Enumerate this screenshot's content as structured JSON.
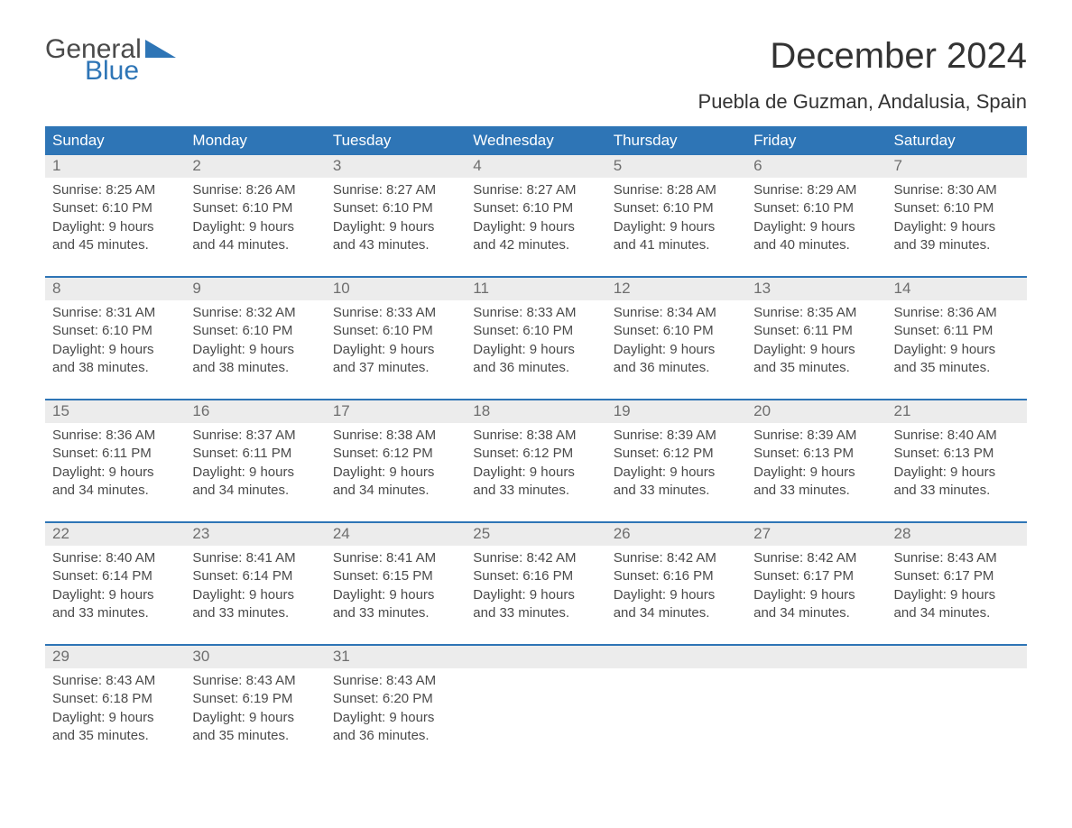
{
  "logo": {
    "word1": "General",
    "word2": "Blue",
    "color_word1": "#4a4a4a",
    "color_word2": "#2e75b6"
  },
  "title": "December 2024",
  "location": "Puebla de Guzman, Andalusia, Spain",
  "colors": {
    "header_bg": "#2e75b6",
    "header_text": "#ffffff",
    "daynum_bg": "#ececec",
    "daynum_text": "#6e6e6e",
    "body_text": "#4a4a4a",
    "week_divider": "#2e75b6",
    "page_bg": "#ffffff"
  },
  "typography": {
    "title_fontsize": 40,
    "location_fontsize": 22,
    "dayheader_fontsize": 17,
    "daynum_fontsize": 17,
    "cell_fontsize": 15
  },
  "day_headers": [
    "Sunday",
    "Monday",
    "Tuesday",
    "Wednesday",
    "Thursday",
    "Friday",
    "Saturday"
  ],
  "weeks": [
    {
      "nums": [
        "1",
        "2",
        "3",
        "4",
        "5",
        "6",
        "7"
      ],
      "cells": [
        {
          "sunrise": "Sunrise: 8:25 AM",
          "sunset": "Sunset: 6:10 PM",
          "dl1": "Daylight: 9 hours",
          "dl2": "and 45 minutes."
        },
        {
          "sunrise": "Sunrise: 8:26 AM",
          "sunset": "Sunset: 6:10 PM",
          "dl1": "Daylight: 9 hours",
          "dl2": "and 44 minutes."
        },
        {
          "sunrise": "Sunrise: 8:27 AM",
          "sunset": "Sunset: 6:10 PM",
          "dl1": "Daylight: 9 hours",
          "dl2": "and 43 minutes."
        },
        {
          "sunrise": "Sunrise: 8:27 AM",
          "sunset": "Sunset: 6:10 PM",
          "dl1": "Daylight: 9 hours",
          "dl2": "and 42 minutes."
        },
        {
          "sunrise": "Sunrise: 8:28 AM",
          "sunset": "Sunset: 6:10 PM",
          "dl1": "Daylight: 9 hours",
          "dl2": "and 41 minutes."
        },
        {
          "sunrise": "Sunrise: 8:29 AM",
          "sunset": "Sunset: 6:10 PM",
          "dl1": "Daylight: 9 hours",
          "dl2": "and 40 minutes."
        },
        {
          "sunrise": "Sunrise: 8:30 AM",
          "sunset": "Sunset: 6:10 PM",
          "dl1": "Daylight: 9 hours",
          "dl2": "and 39 minutes."
        }
      ]
    },
    {
      "nums": [
        "8",
        "9",
        "10",
        "11",
        "12",
        "13",
        "14"
      ],
      "cells": [
        {
          "sunrise": "Sunrise: 8:31 AM",
          "sunset": "Sunset: 6:10 PM",
          "dl1": "Daylight: 9 hours",
          "dl2": "and 38 minutes."
        },
        {
          "sunrise": "Sunrise: 8:32 AM",
          "sunset": "Sunset: 6:10 PM",
          "dl1": "Daylight: 9 hours",
          "dl2": "and 38 minutes."
        },
        {
          "sunrise": "Sunrise: 8:33 AM",
          "sunset": "Sunset: 6:10 PM",
          "dl1": "Daylight: 9 hours",
          "dl2": "and 37 minutes."
        },
        {
          "sunrise": "Sunrise: 8:33 AM",
          "sunset": "Sunset: 6:10 PM",
          "dl1": "Daylight: 9 hours",
          "dl2": "and 36 minutes."
        },
        {
          "sunrise": "Sunrise: 8:34 AM",
          "sunset": "Sunset: 6:10 PM",
          "dl1": "Daylight: 9 hours",
          "dl2": "and 36 minutes."
        },
        {
          "sunrise": "Sunrise: 8:35 AM",
          "sunset": "Sunset: 6:11 PM",
          "dl1": "Daylight: 9 hours",
          "dl2": "and 35 minutes."
        },
        {
          "sunrise": "Sunrise: 8:36 AM",
          "sunset": "Sunset: 6:11 PM",
          "dl1": "Daylight: 9 hours",
          "dl2": "and 35 minutes."
        }
      ]
    },
    {
      "nums": [
        "15",
        "16",
        "17",
        "18",
        "19",
        "20",
        "21"
      ],
      "cells": [
        {
          "sunrise": "Sunrise: 8:36 AM",
          "sunset": "Sunset: 6:11 PM",
          "dl1": "Daylight: 9 hours",
          "dl2": "and 34 minutes."
        },
        {
          "sunrise": "Sunrise: 8:37 AM",
          "sunset": "Sunset: 6:11 PM",
          "dl1": "Daylight: 9 hours",
          "dl2": "and 34 minutes."
        },
        {
          "sunrise": "Sunrise: 8:38 AM",
          "sunset": "Sunset: 6:12 PM",
          "dl1": "Daylight: 9 hours",
          "dl2": "and 34 minutes."
        },
        {
          "sunrise": "Sunrise: 8:38 AM",
          "sunset": "Sunset: 6:12 PM",
          "dl1": "Daylight: 9 hours",
          "dl2": "and 33 minutes."
        },
        {
          "sunrise": "Sunrise: 8:39 AM",
          "sunset": "Sunset: 6:12 PM",
          "dl1": "Daylight: 9 hours",
          "dl2": "and 33 minutes."
        },
        {
          "sunrise": "Sunrise: 8:39 AM",
          "sunset": "Sunset: 6:13 PM",
          "dl1": "Daylight: 9 hours",
          "dl2": "and 33 minutes."
        },
        {
          "sunrise": "Sunrise: 8:40 AM",
          "sunset": "Sunset: 6:13 PM",
          "dl1": "Daylight: 9 hours",
          "dl2": "and 33 minutes."
        }
      ]
    },
    {
      "nums": [
        "22",
        "23",
        "24",
        "25",
        "26",
        "27",
        "28"
      ],
      "cells": [
        {
          "sunrise": "Sunrise: 8:40 AM",
          "sunset": "Sunset: 6:14 PM",
          "dl1": "Daylight: 9 hours",
          "dl2": "and 33 minutes."
        },
        {
          "sunrise": "Sunrise: 8:41 AM",
          "sunset": "Sunset: 6:14 PM",
          "dl1": "Daylight: 9 hours",
          "dl2": "and 33 minutes."
        },
        {
          "sunrise": "Sunrise: 8:41 AM",
          "sunset": "Sunset: 6:15 PM",
          "dl1": "Daylight: 9 hours",
          "dl2": "and 33 minutes."
        },
        {
          "sunrise": "Sunrise: 8:42 AM",
          "sunset": "Sunset: 6:16 PM",
          "dl1": "Daylight: 9 hours",
          "dl2": "and 33 minutes."
        },
        {
          "sunrise": "Sunrise: 8:42 AM",
          "sunset": "Sunset: 6:16 PM",
          "dl1": "Daylight: 9 hours",
          "dl2": "and 34 minutes."
        },
        {
          "sunrise": "Sunrise: 8:42 AM",
          "sunset": "Sunset: 6:17 PM",
          "dl1": "Daylight: 9 hours",
          "dl2": "and 34 minutes."
        },
        {
          "sunrise": "Sunrise: 8:43 AM",
          "sunset": "Sunset: 6:17 PM",
          "dl1": "Daylight: 9 hours",
          "dl2": "and 34 minutes."
        }
      ]
    },
    {
      "nums": [
        "29",
        "30",
        "31",
        "",
        "",
        "",
        ""
      ],
      "cells": [
        {
          "sunrise": "Sunrise: 8:43 AM",
          "sunset": "Sunset: 6:18 PM",
          "dl1": "Daylight: 9 hours",
          "dl2": "and 35 minutes."
        },
        {
          "sunrise": "Sunrise: 8:43 AM",
          "sunset": "Sunset: 6:19 PM",
          "dl1": "Daylight: 9 hours",
          "dl2": "and 35 minutes."
        },
        {
          "sunrise": "Sunrise: 8:43 AM",
          "sunset": "Sunset: 6:20 PM",
          "dl1": "Daylight: 9 hours",
          "dl2": "and 36 minutes."
        },
        {
          "sunrise": "",
          "sunset": "",
          "dl1": "",
          "dl2": ""
        },
        {
          "sunrise": "",
          "sunset": "",
          "dl1": "",
          "dl2": ""
        },
        {
          "sunrise": "",
          "sunset": "",
          "dl1": "",
          "dl2": ""
        },
        {
          "sunrise": "",
          "sunset": "",
          "dl1": "",
          "dl2": ""
        }
      ]
    }
  ]
}
